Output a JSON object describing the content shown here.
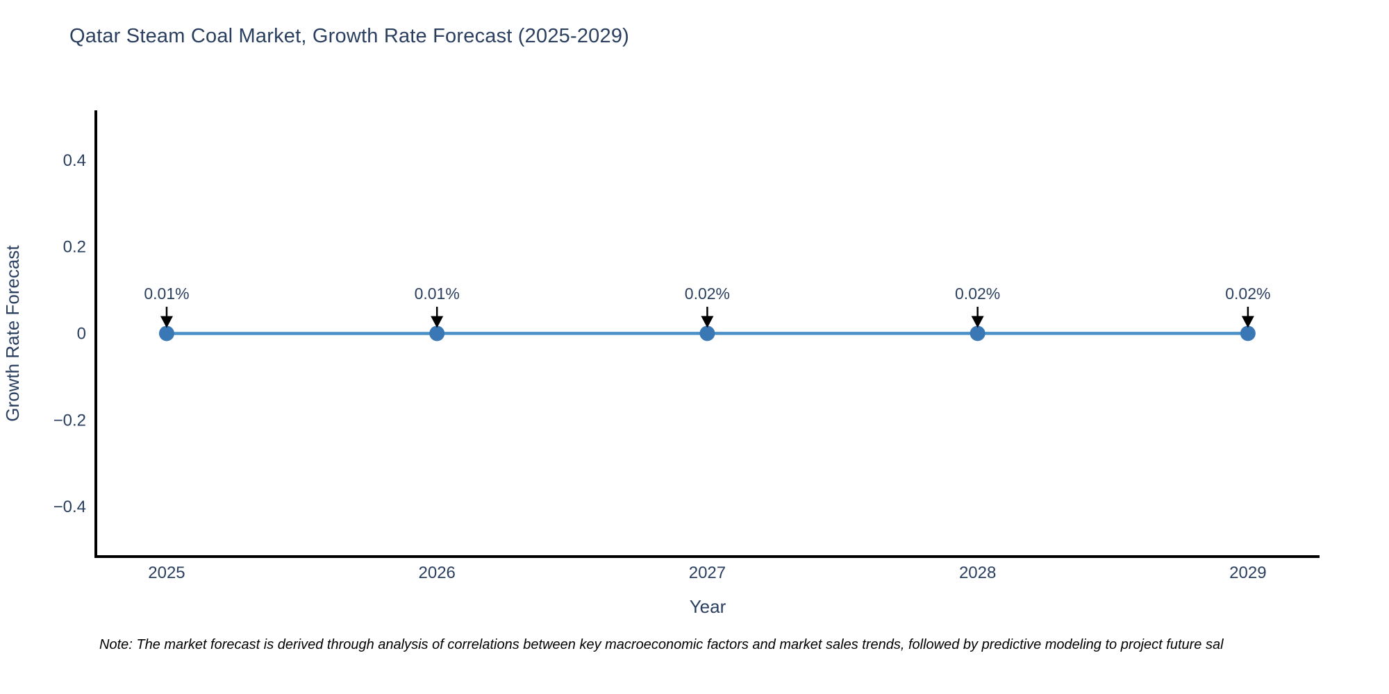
{
  "page": {
    "background": "#ffffff"
  },
  "chart_data": {
    "type": "line",
    "title": "Qatar Steam Coal Market, Growth Rate Forecast (2025-2029)",
    "xlabel": "Year",
    "ylabel": "Growth Rate Forecast",
    "categories": [
      "2025",
      "2026",
      "2027",
      "2028",
      "2029"
    ],
    "x": [
      2025,
      2026,
      2027,
      2028,
      2029
    ],
    "series": [
      {
        "name": "Growth Rate Forecast",
        "values_percent": [
          0.01,
          0.01,
          0.02,
          0.02,
          0.02
        ],
        "point_labels": [
          "0.01%",
          "0.01%",
          "0.02%",
          "0.02%",
          "0.02%"
        ]
      }
    ],
    "y_ticks": {
      "labels": [
        "0.4",
        "0.2",
        "0",
        "−0.2",
        "−0.4"
      ],
      "values": [
        0.4,
        0.2,
        0,
        -0.2,
        -0.4
      ]
    },
    "xlim": [
      2024.738,
      2029.265
    ],
    "ylim": [
      -0.515,
      0.515
    ],
    "grid": false,
    "legend": "none",
    "annotation_style": "down-arrow",
    "colors": {
      "line": "#4a90c9",
      "marker": "#3a78b5",
      "axis": "#000000",
      "text": "#2a3f5f",
      "arrow": "#000000",
      "note": "#000000"
    }
  },
  "note": {
    "text": "Note: The market forecast is derived through analysis of correlations between key macroeconomic factors and market sales trends, followed by predictive modeling to project future sal"
  }
}
